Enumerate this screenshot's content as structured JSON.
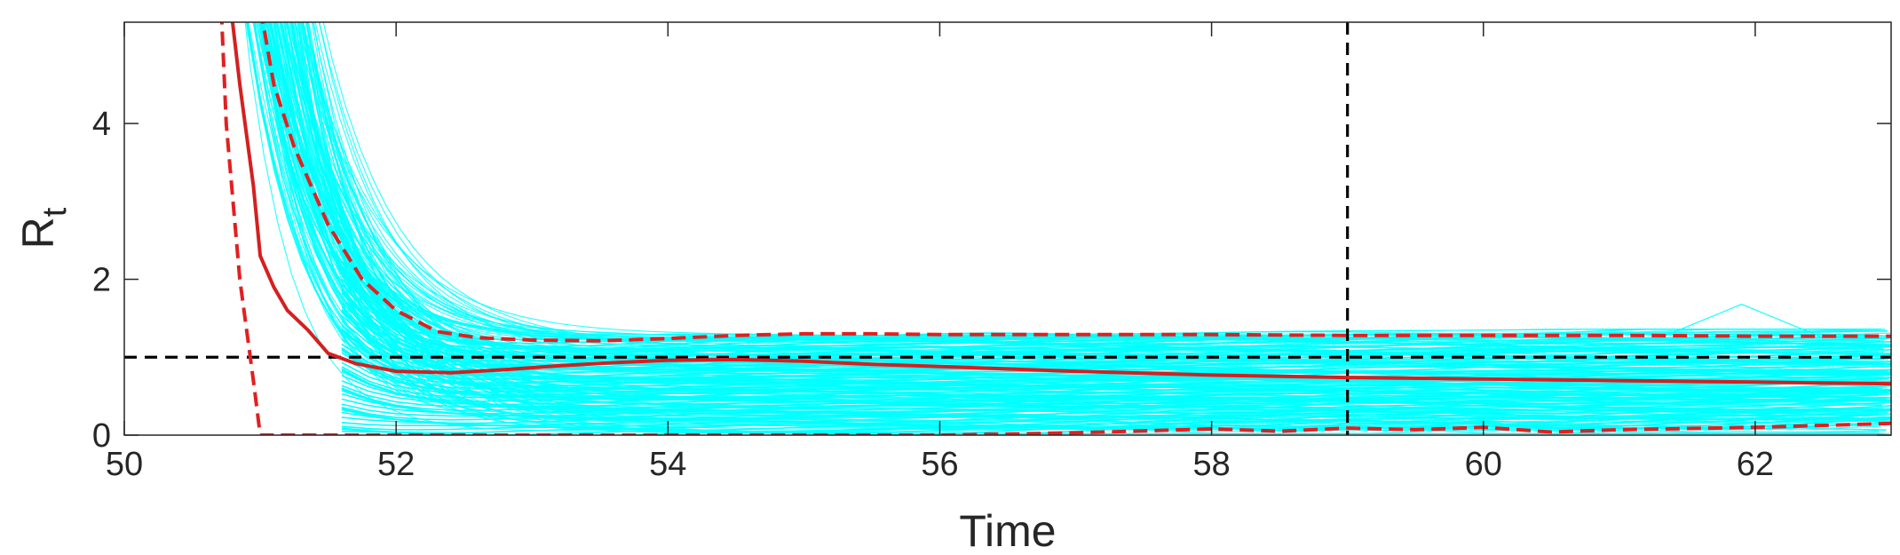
{
  "chart_data": {
    "type": "line",
    "xlabel": "Time",
    "ylabel_main": "R",
    "ylabel_sub": "t",
    "xlim": [
      50,
      63
    ],
    "ylim": [
      0,
      5.3
    ],
    "xticks": [
      "50",
      "52",
      "54",
      "56",
      "58",
      "60",
      "62"
    ],
    "yticks": [
      "0",
      "2",
      "4"
    ],
    "grid": false,
    "legend": "none",
    "colors": {
      "ensemble": "#00ffff",
      "median": "#d42020",
      "bounds": "#e02020",
      "reference": "#000000",
      "axis": "#262626"
    },
    "reference_lines": {
      "horizontal_y": 1,
      "vertical_x": 59
    },
    "median": {
      "x": [
        50.75,
        50.85,
        50.95,
        51.0,
        51.1,
        51.2,
        51.35,
        51.5,
        51.7,
        52.0,
        52.4,
        52.8,
        53.2,
        53.6,
        54.0,
        54.5,
        55.0,
        55.5,
        56.0,
        57.0,
        58.0,
        59.0,
        60.0,
        61.0,
        62.0,
        63.0
      ],
      "y": [
        6.0,
        4.5,
        3.2,
        2.3,
        1.9,
        1.6,
        1.35,
        1.05,
        0.92,
        0.82,
        0.8,
        0.84,
        0.89,
        0.93,
        0.96,
        0.97,
        0.95,
        0.91,
        0.88,
        0.82,
        0.77,
        0.74,
        0.72,
        0.7,
        0.68,
        0.66
      ]
    },
    "upper_bound": {
      "x": [
        50.95,
        51.0,
        51.1,
        51.25,
        51.5,
        51.75,
        52.0,
        52.3,
        52.6,
        53.0,
        53.5,
        54.0,
        54.5,
        55.0,
        55.5,
        56.0,
        57.0,
        58.0,
        59.0,
        60.0,
        61.0,
        62.0,
        63.0
      ],
      "y": [
        6.0,
        5.5,
        4.5,
        3.7,
        2.7,
        2.0,
        1.6,
        1.33,
        1.25,
        1.22,
        1.21,
        1.24,
        1.28,
        1.3,
        1.3,
        1.29,
        1.29,
        1.29,
        1.28,
        1.28,
        1.28,
        1.27,
        1.27
      ]
    },
    "lower_bound": {
      "x": [
        50.7,
        50.75,
        50.85,
        50.95,
        51.0,
        51.2,
        52.0,
        53.0,
        54.0,
        55.0,
        56.0,
        57.0,
        58.0,
        58.5,
        59.0,
        59.5,
        60.0,
        60.5,
        61.0,
        62.0,
        63.0
      ],
      "y": [
        6.0,
        4.0,
        2.0,
        0.7,
        0.0,
        0.0,
        0.0,
        0.0,
        0.0,
        0.0,
        0.0,
        0.03,
        0.08,
        0.05,
        0.09,
        0.07,
        0.1,
        0.04,
        0.07,
        0.1,
        0.15
      ]
    },
    "ensemble_member_count": 150,
    "ensemble_outlier_peak": {
      "x": 61.9,
      "y": 1.68
    }
  }
}
